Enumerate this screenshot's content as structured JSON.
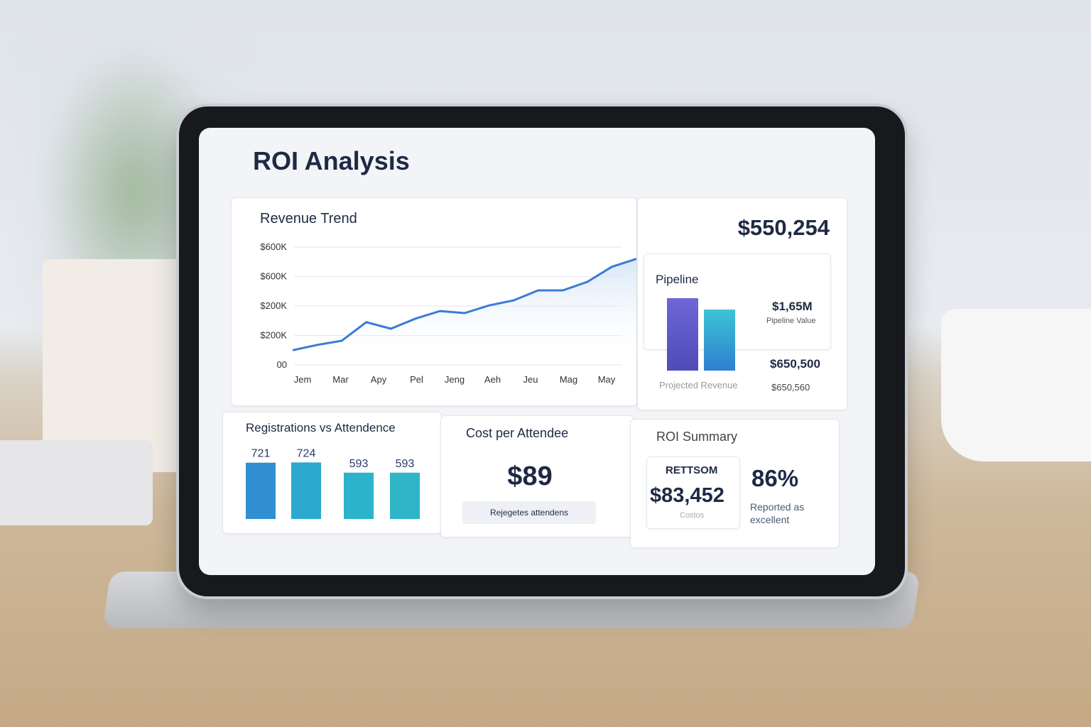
{
  "header": {
    "title": "ROI Analysis"
  },
  "revenue_trend": {
    "title": "Revenue Trend",
    "ytick_labels": [
      "00",
      "$200K",
      "$200K",
      "$600K",
      "$600K"
    ],
    "x_labels": [
      "Jem",
      "Mar",
      "Apy",
      "Pel",
      "Jeng",
      "Aeh",
      "Jeu",
      "Mag",
      "May"
    ],
    "values": [
      0.5,
      0.68,
      0.82,
      1.45,
      1.23,
      1.57,
      1.83,
      1.76,
      2.02,
      2.19,
      2.53,
      2.53,
      2.82,
      3.33,
      3.6
    ],
    "color": "#3a7bd5"
  },
  "kpi": {
    "value": "$550,254"
  },
  "pipeline": {
    "title": "Pipeline",
    "value": "$1,65M",
    "value_caption": "Pipeline Value",
    "projected_value": "$650,500",
    "projected_caption": "Projected Revenue",
    "projected_sub": "$650,560"
  },
  "registrations": {
    "title": "Registrations vs Attendence",
    "values": [
      721,
      724,
      593,
      593
    ],
    "colors": [
      "#2f8fd0",
      "#2ba9cf",
      "#2bb3cc",
      "#2fb5c8"
    ]
  },
  "cost": {
    "title": "Cost per Attendee",
    "value": "$89",
    "button": "Rejegetes attendens"
  },
  "roi_summary": {
    "title": "ROI Summary",
    "card_label": "RETTSOM",
    "card_value": "$83,452",
    "card_caption": "Costos",
    "percent": "86%",
    "note": "Reported as excellent"
  }
}
